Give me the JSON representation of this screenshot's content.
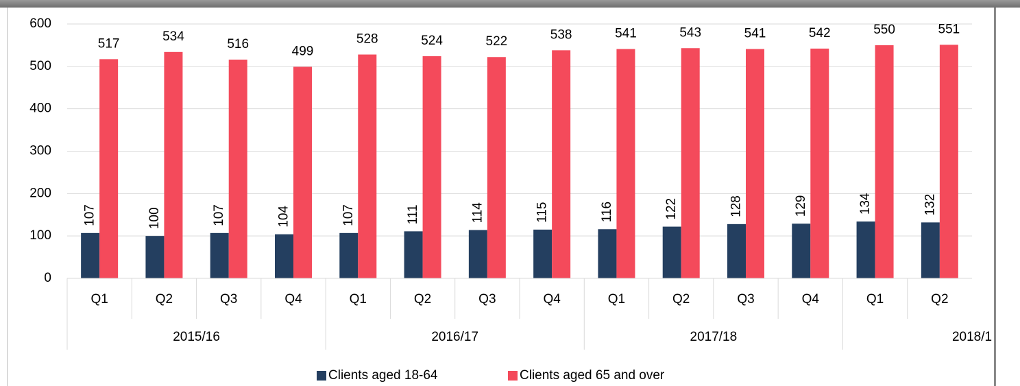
{
  "chart_data": {
    "type": "bar",
    "groups": [
      {
        "name": "2015/16",
        "categories": [
          "Q1",
          "Q2",
          "Q3",
          "Q4"
        ]
      },
      {
        "name": "2016/17",
        "categories": [
          "Q1",
          "Q2",
          "Q3",
          "Q4"
        ]
      },
      {
        "name": "2017/18",
        "categories": [
          "Q1",
          "Q2",
          "Q3",
          "Q4"
        ]
      },
      {
        "name": "2018/1",
        "categories": [
          "Q1",
          "Q2"
        ]
      }
    ],
    "series": [
      {
        "name": "Clients aged 18-64",
        "color": "#243f60",
        "values": [
          107,
          100,
          107,
          104,
          107,
          111,
          114,
          115,
          116,
          122,
          128,
          129,
          134,
          132
        ]
      },
      {
        "name": "Clients aged 65 and over",
        "color": "#f44a5b",
        "values": [
          517,
          534,
          516,
          499,
          528,
          524,
          522,
          538,
          541,
          543,
          541,
          542,
          550,
          551
        ]
      }
    ],
    "ylim": [
      0,
      600
    ],
    "yticks": [
      0,
      100,
      200,
      300,
      400,
      500,
      600
    ],
    "grid": true,
    "legend": "bottom"
  }
}
